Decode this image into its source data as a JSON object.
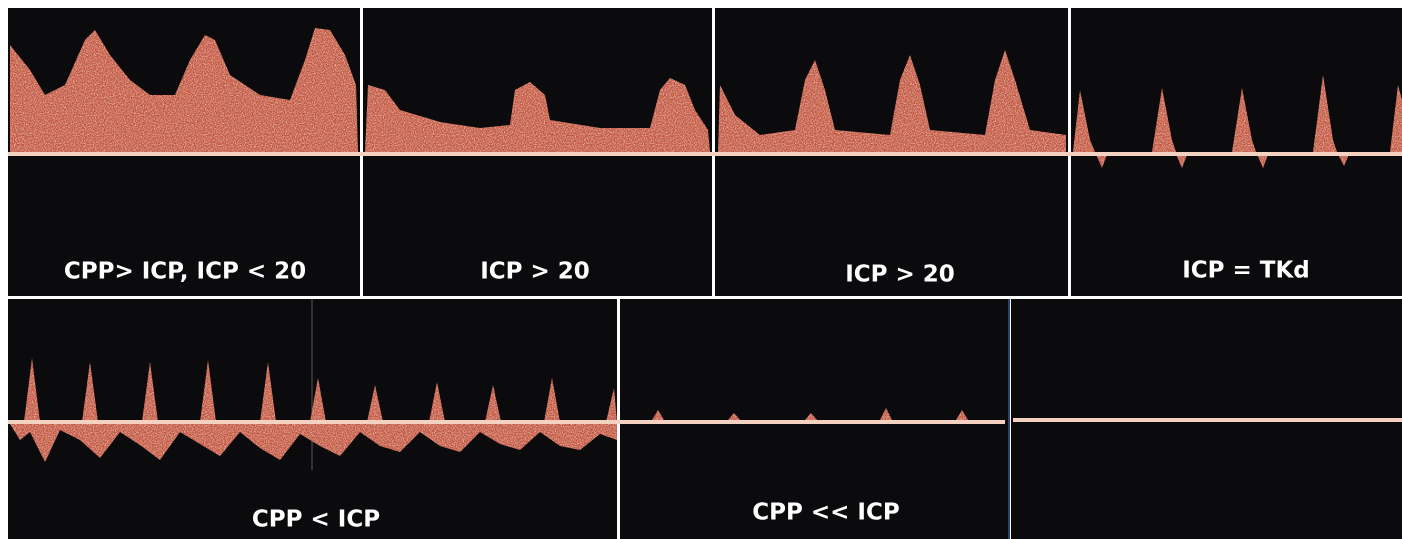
{
  "labels": [
    "CPP> ICP, ICP < 20",
    "ICP > 20",
    "ICP > 20",
    "ICP = TKd",
    "CPP < ICP",
    "CPP << ICP"
  ]
}
